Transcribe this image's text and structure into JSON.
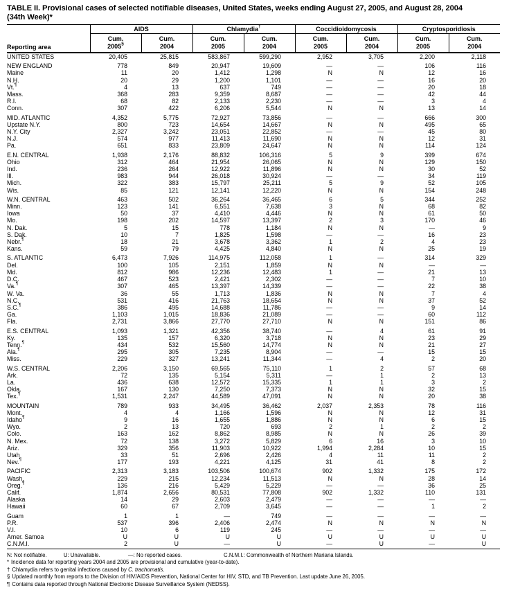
{
  "title_line1": "TABLE II. Provisional cases of selected notifiable diseases, United States, weeks ending August 27, 2005, and August 28, 2004",
  "title_line2": "(34th Week)*",
  "header": {
    "reporting_area_label": "Reporting area",
    "groups": [
      {
        "label": "AIDS",
        "marker": "",
        "cols": [
          {
            "l1": "Cum.",
            "l2": "2005",
            "m": "§"
          },
          {
            "l1": "Cum.",
            "l2": "2004",
            "m": ""
          }
        ]
      },
      {
        "label": "Chlamydia",
        "marker": "†",
        "cols": [
          {
            "l1": "Cum.",
            "l2": "2005",
            "m": ""
          },
          {
            "l1": "Cum.",
            "l2": "2004",
            "m": ""
          }
        ]
      },
      {
        "label": "Coccidioidomycosis",
        "marker": "",
        "cols": [
          {
            "l1": "Cum.",
            "l2": "2005",
            "m": ""
          },
          {
            "l1": "Cum.",
            "l2": "2004",
            "m": ""
          }
        ]
      },
      {
        "label": "Cryptosporidiosis",
        "marker": "",
        "cols": [
          {
            "l1": "Cum.",
            "l2": "2005",
            "m": ""
          },
          {
            "l1": "Cum.",
            "l2": "2004",
            "m": ""
          }
        ]
      }
    ]
  },
  "rows": [
    {
      "a": "UNITED STATES",
      "m": "",
      "t": "total",
      "g": false,
      "v": [
        "20,405",
        "25,815",
        "583,867",
        "599,290",
        "2,952",
        "3,705",
        "2,200",
        "2,118"
      ]
    },
    {
      "a": "NEW ENGLAND",
      "m": "",
      "t": "region",
      "g": true,
      "v": [
        "778",
        "849",
        "20,947",
        "19,609",
        "—",
        "—",
        "106",
        "116"
      ]
    },
    {
      "a": "Maine",
      "m": "",
      "t": "state",
      "g": false,
      "v": [
        "11",
        "20",
        "1,412",
        "1,298",
        "N",
        "N",
        "12",
        "16"
      ]
    },
    {
      "a": "N.H.",
      "m": "",
      "t": "state",
      "g": false,
      "v": [
        "20",
        "29",
        "1,200",
        "1,101",
        "—",
        "—",
        "16",
        "20"
      ]
    },
    {
      "a": "Vt.",
      "m": "¶",
      "t": "state",
      "g": false,
      "v": [
        "4",
        "13",
        "637",
        "749",
        "—",
        "—",
        "20",
        "18"
      ]
    },
    {
      "a": "Mass.",
      "m": "",
      "t": "state",
      "g": false,
      "v": [
        "368",
        "283",
        "9,359",
        "8,687",
        "—",
        "—",
        "42",
        "44"
      ]
    },
    {
      "a": "R.I.",
      "m": "",
      "t": "state",
      "g": false,
      "v": [
        "68",
        "82",
        "2,133",
        "2,230",
        "—",
        "—",
        "3",
        "4"
      ]
    },
    {
      "a": "Conn.",
      "m": "",
      "t": "state",
      "g": false,
      "v": [
        "307",
        "422",
        "6,206",
        "5,544",
        "N",
        "N",
        "13",
        "14"
      ]
    },
    {
      "a": "MID. ATLANTIC",
      "m": "",
      "t": "region",
      "g": true,
      "v": [
        "4,352",
        "5,775",
        "72,927",
        "73,856",
        "—",
        "—",
        "666",
        "300"
      ]
    },
    {
      "a": "Upstate N.Y.",
      "m": "",
      "t": "state",
      "g": false,
      "v": [
        "800",
        "723",
        "14,654",
        "14,667",
        "N",
        "N",
        "495",
        "65"
      ]
    },
    {
      "a": "N.Y. City",
      "m": "",
      "t": "state",
      "g": false,
      "v": [
        "2,327",
        "3,242",
        "23,051",
        "22,852",
        "—",
        "—",
        "45",
        "80"
      ]
    },
    {
      "a": "N.J.",
      "m": "",
      "t": "state",
      "g": false,
      "v": [
        "574",
        "977",
        "11,413",
        "11,690",
        "N",
        "N",
        "12",
        "31"
      ]
    },
    {
      "a": "Pa.",
      "m": "",
      "t": "state",
      "g": false,
      "v": [
        "651",
        "833",
        "23,809",
        "24,647",
        "N",
        "N",
        "114",
        "124"
      ]
    },
    {
      "a": "E.N. CENTRAL",
      "m": "",
      "t": "region",
      "g": true,
      "v": [
        "1,938",
        "2,176",
        "88,832",
        "106,316",
        "5",
        "9",
        "399",
        "674"
      ]
    },
    {
      "a": "Ohio",
      "m": "",
      "t": "state",
      "g": false,
      "v": [
        "312",
        "464",
        "21,954",
        "26,065",
        "N",
        "N",
        "129",
        "150"
      ]
    },
    {
      "a": "Ind.",
      "m": "",
      "t": "state",
      "g": false,
      "v": [
        "236",
        "264",
        "12,922",
        "11,896",
        "N",
        "N",
        "30",
        "52"
      ]
    },
    {
      "a": "Ill.",
      "m": "",
      "t": "state",
      "g": false,
      "v": [
        "983",
        "944",
        "26,018",
        "30,924",
        "—",
        "—",
        "34",
        "119"
      ]
    },
    {
      "a": "Mich.",
      "m": "",
      "t": "state",
      "g": false,
      "v": [
        "322",
        "383",
        "15,797",
        "25,211",
        "5",
        "9",
        "52",
        "105"
      ]
    },
    {
      "a": "Wis.",
      "m": "",
      "t": "state",
      "g": false,
      "v": [
        "85",
        "121",
        "12,141",
        "12,220",
        "N",
        "N",
        "154",
        "248"
      ]
    },
    {
      "a": "W.N. CENTRAL",
      "m": "",
      "t": "region",
      "g": true,
      "v": [
        "463",
        "502",
        "36,264",
        "36,465",
        "6",
        "5",
        "344",
        "252"
      ]
    },
    {
      "a": "Minn.",
      "m": "",
      "t": "state",
      "g": false,
      "v": [
        "123",
        "141",
        "6,551",
        "7,638",
        "3",
        "N",
        "68",
        "82"
      ]
    },
    {
      "a": "Iowa",
      "m": "",
      "t": "state",
      "g": false,
      "v": [
        "50",
        "37",
        "4,410",
        "4,446",
        "N",
        "N",
        "61",
        "50"
      ]
    },
    {
      "a": "Mo.",
      "m": "",
      "t": "state",
      "g": false,
      "v": [
        "198",
        "202",
        "14,597",
        "13,397",
        "2",
        "3",
        "170",
        "46"
      ]
    },
    {
      "a": "N. Dak.",
      "m": "",
      "t": "state",
      "g": false,
      "v": [
        "5",
        "15",
        "778",
        "1,184",
        "N",
        "N",
        "—",
        "9"
      ]
    },
    {
      "a": "S. Dak.",
      "m": "",
      "t": "state",
      "g": false,
      "v": [
        "10",
        "7",
        "1,825",
        "1,598",
        "—",
        "—",
        "16",
        "23"
      ]
    },
    {
      "a": "Nebr.",
      "m": "¶",
      "t": "state",
      "g": false,
      "v": [
        "18",
        "21",
        "3,678",
        "3,362",
        "1",
        "2",
        "4",
        "23"
      ]
    },
    {
      "a": "Kans.",
      "m": "",
      "t": "state",
      "g": false,
      "v": [
        "59",
        "79",
        "4,425",
        "4,840",
        "N",
        "N",
        "25",
        "19"
      ]
    },
    {
      "a": "S. ATLANTIC",
      "m": "",
      "t": "region",
      "g": true,
      "v": [
        "6,473",
        "7,926",
        "114,975",
        "112,058",
        "1",
        "—",
        "314",
        "329"
      ]
    },
    {
      "a": "Del.",
      "m": "",
      "t": "state",
      "g": false,
      "v": [
        "100",
        "105",
        "2,151",
        "1,859",
        "N",
        "N",
        "—",
        "—"
      ]
    },
    {
      "a": "Md.",
      "m": "",
      "t": "state",
      "g": false,
      "v": [
        "812",
        "986",
        "12,236",
        "12,483",
        "1",
        "—",
        "21",
        "13"
      ]
    },
    {
      "a": "D.C.",
      "m": "",
      "t": "state",
      "g": false,
      "v": [
        "467",
        "523",
        "2,421",
        "2,302",
        "—",
        "—",
        "7",
        "10"
      ]
    },
    {
      "a": "Va.",
      "m": "¶",
      "t": "state",
      "g": false,
      "v": [
        "307",
        "465",
        "13,397",
        "14,339",
        "—",
        "—",
        "22",
        "38"
      ]
    },
    {
      "a": "W. Va.",
      "m": "",
      "t": "state",
      "g": false,
      "v": [
        "36",
        "55",
        "1,713",
        "1,836",
        "N",
        "N",
        "7",
        "4"
      ]
    },
    {
      "a": "N.C.",
      "m": "",
      "t": "state",
      "g": false,
      "v": [
        "531",
        "416",
        "21,763",
        "18,654",
        "N",
        "N",
        "37",
        "52"
      ]
    },
    {
      "a": "S.C.",
      "m": "¶",
      "t": "state",
      "g": false,
      "v": [
        "386",
        "495",
        "14,688",
        "11,786",
        "—",
        "—",
        "9",
        "14"
      ]
    },
    {
      "a": "Ga.",
      "m": "",
      "t": "state",
      "g": false,
      "v": [
        "1,103",
        "1,015",
        "18,836",
        "21,089",
        "—",
        "—",
        "60",
        "112"
      ]
    },
    {
      "a": "Fla.",
      "m": "",
      "t": "state",
      "g": false,
      "v": [
        "2,731",
        "3,866",
        "27,770",
        "27,710",
        "N",
        "N",
        "151",
        "86"
      ]
    },
    {
      "a": "E.S. CENTRAL",
      "m": "",
      "t": "region",
      "g": true,
      "v": [
        "1,093",
        "1,321",
        "42,356",
        "38,740",
        "—",
        "4",
        "61",
        "91"
      ]
    },
    {
      "a": "Ky.",
      "m": "",
      "t": "state",
      "g": false,
      "v": [
        "135",
        "157",
        "6,320",
        "3,718",
        "N",
        "N",
        "23",
        "29"
      ]
    },
    {
      "a": "Tenn.",
      "m": "¶",
      "t": "state",
      "g": false,
      "v": [
        "434",
        "532",
        "15,560",
        "14,774",
        "N",
        "N",
        "21",
        "27"
      ]
    },
    {
      "a": "Ala.",
      "m": "¶",
      "t": "state",
      "g": false,
      "v": [
        "295",
        "305",
        "7,235",
        "8,904",
        "—",
        "—",
        "15",
        "15"
      ]
    },
    {
      "a": "Miss.",
      "m": "",
      "t": "state",
      "g": false,
      "v": [
        "229",
        "327",
        "13,241",
        "11,344",
        "—",
        "4",
        "2",
        "20"
      ]
    },
    {
      "a": "W.S. CENTRAL",
      "m": "",
      "t": "region",
      "g": true,
      "v": [
        "2,206",
        "3,150",
        "69,565",
        "75,110",
        "1",
        "2",
        "57",
        "68"
      ]
    },
    {
      "a": "Ark.",
      "m": "",
      "t": "state",
      "g": false,
      "v": [
        "72",
        "135",
        "5,154",
        "5,311",
        "—",
        "1",
        "2",
        "13"
      ]
    },
    {
      "a": "La.",
      "m": "",
      "t": "state",
      "g": false,
      "v": [
        "436",
        "638",
        "12,572",
        "15,335",
        "1",
        "1",
        "3",
        "2"
      ]
    },
    {
      "a": "Okla.",
      "m": "",
      "t": "state",
      "g": false,
      "v": [
        "167",
        "130",
        "7,250",
        "7,373",
        "N",
        "N",
        "32",
        "15"
      ]
    },
    {
      "a": "Tex.",
      "m": "¶",
      "t": "state",
      "g": false,
      "v": [
        "1,531",
        "2,247",
        "44,589",
        "47,091",
        "N",
        "N",
        "20",
        "38"
      ]
    },
    {
      "a": "MOUNTAIN",
      "m": "",
      "t": "region",
      "g": true,
      "v": [
        "789",
        "933",
        "34,495",
        "36,462",
        "2,037",
        "2,353",
        "78",
        "116"
      ]
    },
    {
      "a": "Mont.",
      "m": "",
      "t": "state",
      "g": false,
      "v": [
        "4",
        "4",
        "1,166",
        "1,596",
        "N",
        "N",
        "12",
        "31"
      ]
    },
    {
      "a": "Idaho",
      "m": "¶",
      "t": "state",
      "g": false,
      "v": [
        "9",
        "16",
        "1,655",
        "1,886",
        "N",
        "N",
        "6",
        "15"
      ]
    },
    {
      "a": "Wyo.",
      "m": "",
      "t": "state",
      "g": false,
      "v": [
        "2",
        "13",
        "720",
        "693",
        "2",
        "1",
        "2",
        "2"
      ]
    },
    {
      "a": "Colo.",
      "m": "",
      "t": "state",
      "g": false,
      "v": [
        "163",
        "162",
        "8,862",
        "8,985",
        "N",
        "N",
        "26",
        "39"
      ]
    },
    {
      "a": "N. Mex.",
      "m": "",
      "t": "state",
      "g": false,
      "v": [
        "72",
        "138",
        "3,272",
        "5,829",
        "6",
        "16",
        "3",
        "10"
      ]
    },
    {
      "a": "Ariz.",
      "m": "",
      "t": "state",
      "g": false,
      "v": [
        "329",
        "356",
        "11,903",
        "10,922",
        "1,994",
        "2,284",
        "10",
        "15"
      ]
    },
    {
      "a": "Utah",
      "m": "",
      "t": "state",
      "g": false,
      "v": [
        "33",
        "51",
        "2,696",
        "2,426",
        "4",
        "11",
        "11",
        "2"
      ]
    },
    {
      "a": "Nev.",
      "m": "¶",
      "t": "state",
      "g": false,
      "v": [
        "177",
        "193",
        "4,221",
        "4,125",
        "31",
        "41",
        "8",
        "2"
      ]
    },
    {
      "a": "PACIFIC",
      "m": "",
      "t": "region",
      "g": true,
      "v": [
        "2,313",
        "3,183",
        "103,506",
        "100,674",
        "902",
        "1,332",
        "175",
        "172"
      ]
    },
    {
      "a": "Wash.",
      "m": "",
      "t": "state",
      "g": false,
      "v": [
        "229",
        "215",
        "12,234",
        "11,513",
        "N",
        "N",
        "28",
        "14"
      ]
    },
    {
      "a": "Oreg.",
      "m": "¶",
      "t": "state",
      "g": false,
      "v": [
        "136",
        "216",
        "5,429",
        "5,229",
        "—",
        "—",
        "36",
        "25"
      ]
    },
    {
      "a": "Calif.",
      "m": "",
      "t": "state",
      "g": false,
      "v": [
        "1,874",
        "2,656",
        "80,531",
        "77,808",
        "902",
        "1,332",
        "110",
        "131"
      ]
    },
    {
      "a": "Alaska",
      "m": "",
      "t": "state",
      "g": false,
      "v": [
        "14",
        "29",
        "2,603",
        "2,479",
        "—",
        "—",
        "—",
        "—"
      ]
    },
    {
      "a": "Hawaii",
      "m": "",
      "t": "state",
      "g": false,
      "v": [
        "60",
        "67",
        "2,709",
        "3,645",
        "—",
        "—",
        "1",
        "2"
      ]
    },
    {
      "a": "Guam",
      "m": "",
      "t": "territory",
      "g": true,
      "v": [
        "1",
        "1",
        "—",
        "749",
        "—",
        "—",
        "—",
        "—"
      ]
    },
    {
      "a": "P.R.",
      "m": "",
      "t": "territory",
      "g": false,
      "v": [
        "537",
        "396",
        "2,406",
        "2,474",
        "N",
        "N",
        "N",
        "N"
      ]
    },
    {
      "a": "V.I.",
      "m": "",
      "t": "territory",
      "g": false,
      "v": [
        "10",
        "6",
        "119",
        "245",
        "—",
        "—",
        "—",
        "—"
      ]
    },
    {
      "a": "Amer. Samoa",
      "m": "",
      "t": "territory",
      "g": false,
      "v": [
        "U",
        "U",
        "U",
        "U",
        "U",
        "U",
        "U",
        "U"
      ]
    },
    {
      "a": "C.N.M.I.",
      "m": "",
      "t": "territory",
      "g": false,
      "v": [
        "2",
        "U",
        "—",
        "U",
        "—",
        "U",
        "—",
        "U"
      ]
    }
  ],
  "footnotes": {
    "legend": [
      "N: Not notifiable.",
      "U: Unavailable.",
      "—: No reported cases.",
      "C.N.M.I.: Commonwealth of Northern Mariana Islands."
    ],
    "notes": [
      {
        "marker": "*",
        "pre": "Incidence data for reporting years 2004 and 2005 are provisional and cumulative (year-to-date).",
        "italic": "",
        "post": ""
      },
      {
        "marker": "†",
        "pre": "Chlamydia refers to genital infections caused by ",
        "italic": "C. trachomatis",
        "post": "."
      },
      {
        "marker": "§",
        "pre": "Updated monthly from reports to the Division of HIV/AIDS Prevention, National Center for HIV, STD, and TB Prevention. Last update June 26, 2005.",
        "italic": "",
        "post": ""
      },
      {
        "marker": "¶",
        "pre": "Contains data reported through National Electronic Disease Surveillance System (NEDSS).",
        "italic": "",
        "post": ""
      }
    ]
  }
}
